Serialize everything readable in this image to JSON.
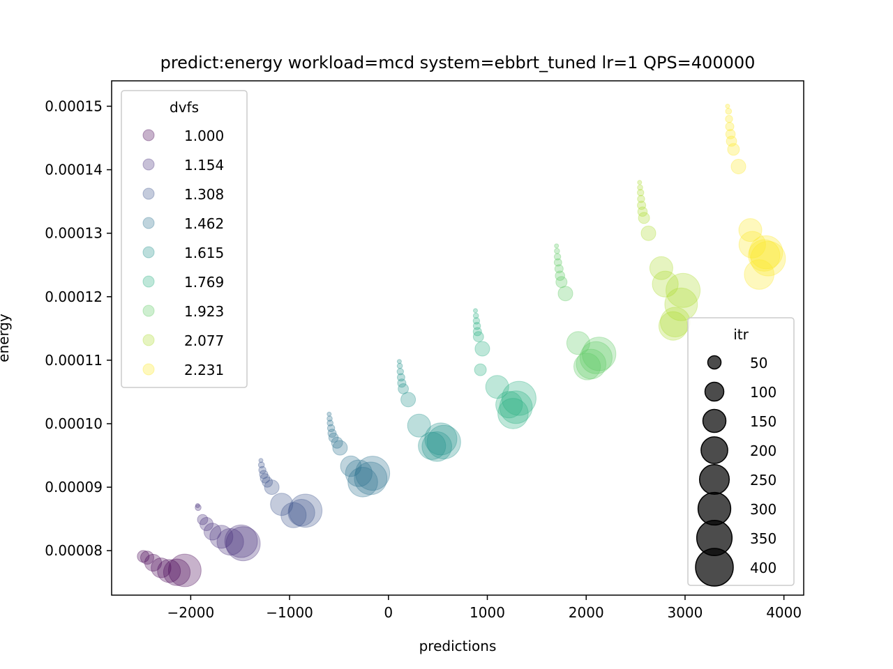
{
  "chart_data": {
    "type": "scatter",
    "title": "predict:energy workload=mcd system=ebbrt_tuned lr=1 QPS=400000",
    "xlabel": "predictions",
    "ylabel": "energy",
    "xlim": [
      -2800,
      4200
    ],
    "ylim": [
      7.3e-05,
      0.000154
    ],
    "xticks": [
      -2000,
      -1000,
      0,
      1000,
      2000,
      3000,
      4000
    ],
    "xtick_labels": [
      "−2000",
      "−1000",
      "0",
      "1000",
      "2000",
      "3000",
      "4000"
    ],
    "yticks": [
      8e-05,
      9e-05,
      0.0001,
      0.00011,
      0.00012,
      0.00013,
      0.00014,
      0.00015
    ],
    "ytick_labels": [
      "0.00008",
      "0.00009",
      "0.00010",
      "0.00011",
      "0.00012",
      "0.00013",
      "0.00014",
      "0.00015"
    ],
    "grid": false,
    "color_legend": {
      "title": "dvfs",
      "placement": "upper-left",
      "entries": [
        {
          "label": "1.000",
          "color": "#440154"
        },
        {
          "label": "1.154",
          "color": "#472d7b"
        },
        {
          "label": "1.308",
          "color": "#3b528b"
        },
        {
          "label": "1.462",
          "color": "#2c728e"
        },
        {
          "label": "1.615",
          "color": "#21918c"
        },
        {
          "label": "1.769",
          "color": "#28ae80"
        },
        {
          "label": "1.923",
          "color": "#5ec962"
        },
        {
          "label": "2.077",
          "color": "#addc30"
        },
        {
          "label": "2.231",
          "color": "#fde725"
        }
      ]
    },
    "size_legend": {
      "title": "itr",
      "placement": "lower-right",
      "entries": [
        {
          "label": "50",
          "value": 50
        },
        {
          "label": "100",
          "value": 100
        },
        {
          "label": "150",
          "value": 150
        },
        {
          "label": "200",
          "value": 200
        },
        {
          "label": "250",
          "value": 250
        },
        {
          "label": "300",
          "value": 300
        },
        {
          "label": "350",
          "value": 350
        },
        {
          "label": "400",
          "value": 400
        }
      ]
    },
    "series": [
      {
        "dvfs": "1.000",
        "points": [
          {
            "x": -2480,
            "y": 7.91e-05,
            "itr": 40
          },
          {
            "x": -2440,
            "y": 7.89e-05,
            "itr": 50
          },
          {
            "x": -2380,
            "y": 7.81e-05,
            "itr": 80
          },
          {
            "x": -2300,
            "y": 7.73e-05,
            "itr": 110
          },
          {
            "x": -2220,
            "y": 7.68e-05,
            "itr": 150
          },
          {
            "x": -2140,
            "y": 7.66e-05,
            "itr": 200
          },
          {
            "x": -2060,
            "y": 7.69e-05,
            "itr": 300
          }
        ]
      },
      {
        "dvfs": "1.154",
        "points": [
          {
            "x": -1930,
            "y": 8.71e-05,
            "itr": 5
          },
          {
            "x": -1925,
            "y": 8.68e-05,
            "itr": 10
          },
          {
            "x": -1880,
            "y": 8.49e-05,
            "itr": 30
          },
          {
            "x": -1840,
            "y": 8.42e-05,
            "itr": 50
          },
          {
            "x": -1780,
            "y": 8.3e-05,
            "itr": 80
          },
          {
            "x": -1690,
            "y": 8.22e-05,
            "itr": 150
          },
          {
            "x": -1600,
            "y": 8.14e-05,
            "itr": 200
          },
          {
            "x": -1490,
            "y": 8.15e-05,
            "itr": 300
          },
          {
            "x": -1470,
            "y": 8.11e-05,
            "itr": 330
          }
        ]
      },
      {
        "dvfs": "1.308",
        "points": [
          {
            "x": -1290,
            "y": 9.42e-05,
            "itr": 5
          },
          {
            "x": -1285,
            "y": 9.35e-05,
            "itr": 10
          },
          {
            "x": -1275,
            "y": 9.27e-05,
            "itr": 15
          },
          {
            "x": -1262,
            "y": 9.2e-05,
            "itr": 20
          },
          {
            "x": -1248,
            "y": 9.14e-05,
            "itr": 25
          },
          {
            "x": -1225,
            "y": 9.08e-05,
            "itr": 30
          },
          {
            "x": -1180,
            "y": 9e-05,
            "itr": 60
          },
          {
            "x": -1080,
            "y": 8.73e-05,
            "itr": 140
          },
          {
            "x": -960,
            "y": 8.56e-05,
            "itr": 180
          },
          {
            "x": -880,
            "y": 8.6e-05,
            "itr": 200
          },
          {
            "x": -840,
            "y": 8.63e-05,
            "itr": 310
          }
        ]
      },
      {
        "dvfs": "1.462",
        "points": [
          {
            "x": -600,
            "y": 0.0001015,
            "itr": 5
          },
          {
            "x": -595,
            "y": 0.0001008,
            "itr": 8
          },
          {
            "x": -590,
            "y": 0.0001001,
            "itr": 10
          },
          {
            "x": -580,
            "y": 9.93e-05,
            "itr": 15
          },
          {
            "x": -570,
            "y": 9.85e-05,
            "itr": 20
          },
          {
            "x": -555,
            "y": 9.78e-05,
            "itr": 25
          },
          {
            "x": -520,
            "y": 9.7e-05,
            "itr": 35
          },
          {
            "x": -490,
            "y": 9.62e-05,
            "itr": 60
          },
          {
            "x": -380,
            "y": 9.33e-05,
            "itr": 120
          },
          {
            "x": -300,
            "y": 9.22e-05,
            "itr": 200
          },
          {
            "x": -260,
            "y": 9.08e-05,
            "itr": 250
          },
          {
            "x": -180,
            "y": 9.14e-05,
            "itr": 300
          },
          {
            "x": -160,
            "y": 9.22e-05,
            "itr": 330
          }
        ]
      },
      {
        "dvfs": "1.615",
        "points": [
          {
            "x": 110,
            "y": 0.0001098,
            "itr": 5
          },
          {
            "x": 115,
            "y": 0.0001091,
            "itr": 8
          },
          {
            "x": 120,
            "y": 0.0001082,
            "itr": 12
          },
          {
            "x": 128,
            "y": 0.0001073,
            "itr": 16
          },
          {
            "x": 135,
            "y": 0.0001064,
            "itr": 20
          },
          {
            "x": 150,
            "y": 0.0001055,
            "itr": 30
          },
          {
            "x": 200,
            "y": 0.0001038,
            "itr": 60
          },
          {
            "x": 310,
            "y": 9.97e-05,
            "itr": 150
          },
          {
            "x": 440,
            "y": 9.65e-05,
            "itr": 210
          },
          {
            "x": 490,
            "y": 9.64e-05,
            "itr": 250
          },
          {
            "x": 530,
            "y": 9.76e-05,
            "itr": 290
          },
          {
            "x": 560,
            "y": 9.71e-05,
            "itr": 320
          }
        ]
      },
      {
        "dvfs": "1.769",
        "points": [
          {
            "x": 880,
            "y": 0.0001178,
            "itr": 5
          },
          {
            "x": 885,
            "y": 0.000117,
            "itr": 8
          },
          {
            "x": 890,
            "y": 0.0001162,
            "itr": 12
          },
          {
            "x": 895,
            "y": 0.0001154,
            "itr": 15
          },
          {
            "x": 900,
            "y": 0.0001145,
            "itr": 20
          },
          {
            "x": 910,
            "y": 0.0001137,
            "itr": 30
          },
          {
            "x": 950,
            "y": 0.0001118,
            "itr": 60
          },
          {
            "x": 930,
            "y": 0.0001085,
            "itr": 40
          },
          {
            "x": 1100,
            "y": 0.0001058,
            "itr": 150
          },
          {
            "x": 1220,
            "y": 0.000103,
            "itr": 200
          },
          {
            "x": 1260,
            "y": 0.0001016,
            "itr": 260
          },
          {
            "x": 1290,
            "y": 0.0001026,
            "itr": 300
          },
          {
            "x": 1320,
            "y": 0.000104,
            "itr": 330
          }
        ]
      },
      {
        "dvfs": "1.923",
        "points": [
          {
            "x": 1700,
            "y": 0.000128,
            "itr": 5
          },
          {
            "x": 1705,
            "y": 0.0001272,
            "itr": 8
          },
          {
            "x": 1710,
            "y": 0.0001263,
            "itr": 12
          },
          {
            "x": 1715,
            "y": 0.0001254,
            "itr": 16
          },
          {
            "x": 1725,
            "y": 0.0001244,
            "itr": 20
          },
          {
            "x": 1735,
            "y": 0.0001233,
            "itr": 25
          },
          {
            "x": 1750,
            "y": 0.0001223,
            "itr": 35
          },
          {
            "x": 1790,
            "y": 0.0001205,
            "itr": 60
          },
          {
            "x": 1920,
            "y": 0.0001127,
            "itr": 150
          },
          {
            "x": 2010,
            "y": 0.000109,
            "itr": 200
          },
          {
            "x": 2050,
            "y": 0.0001094,
            "itr": 250
          },
          {
            "x": 2100,
            "y": 0.0001104,
            "itr": 290
          },
          {
            "x": 2130,
            "y": 0.000111,
            "itr": 320
          }
        ]
      },
      {
        "dvfs": "2.077",
        "points": [
          {
            "x": 2540,
            "y": 0.000138,
            "itr": 5
          },
          {
            "x": 2545,
            "y": 0.0001372,
            "itr": 8
          },
          {
            "x": 2550,
            "y": 0.0001364,
            "itr": 12
          },
          {
            "x": 2555,
            "y": 0.0001354,
            "itr": 15
          },
          {
            "x": 2560,
            "y": 0.0001344,
            "itr": 20
          },
          {
            "x": 2570,
            "y": 0.0001334,
            "itr": 25
          },
          {
            "x": 2585,
            "y": 0.0001324,
            "itr": 35
          },
          {
            "x": 2630,
            "y": 0.00013,
            "itr": 60
          },
          {
            "x": 2760,
            "y": 0.0001245,
            "itr": 150
          },
          {
            "x": 2800,
            "y": 0.000122,
            "itr": 190
          },
          {
            "x": 2880,
            "y": 0.0001154,
            "itr": 230
          },
          {
            "x": 2900,
            "y": 0.000116,
            "itr": 250
          },
          {
            "x": 2960,
            "y": 0.0001188,
            "itr": 300
          },
          {
            "x": 2980,
            "y": 0.000121,
            "itr": 330
          }
        ]
      },
      {
        "dvfs": "2.231",
        "points": [
          {
            "x": 3430,
            "y": 0.00015,
            "itr": 5
          },
          {
            "x": 3440,
            "y": 0.0001492,
            "itr": 10
          },
          {
            "x": 3445,
            "y": 0.000148,
            "itr": 15
          },
          {
            "x": 3452,
            "y": 0.0001468,
            "itr": 20
          },
          {
            "x": 3460,
            "y": 0.0001456,
            "itr": 25
          },
          {
            "x": 3470,
            "y": 0.0001445,
            "itr": 30
          },
          {
            "x": 3490,
            "y": 0.0001432,
            "itr": 40
          },
          {
            "x": 3540,
            "y": 0.0001405,
            "itr": 60
          },
          {
            "x": 3660,
            "y": 0.0001305,
            "itr": 150
          },
          {
            "x": 3680,
            "y": 0.0001282,
            "itr": 200
          },
          {
            "x": 3750,
            "y": 0.0001235,
            "itr": 250
          },
          {
            "x": 3800,
            "y": 0.0001265,
            "itr": 280
          },
          {
            "x": 3820,
            "y": 0.000127,
            "itr": 310
          },
          {
            "x": 3840,
            "y": 0.000126,
            "itr": 340
          }
        ]
      }
    ]
  }
}
